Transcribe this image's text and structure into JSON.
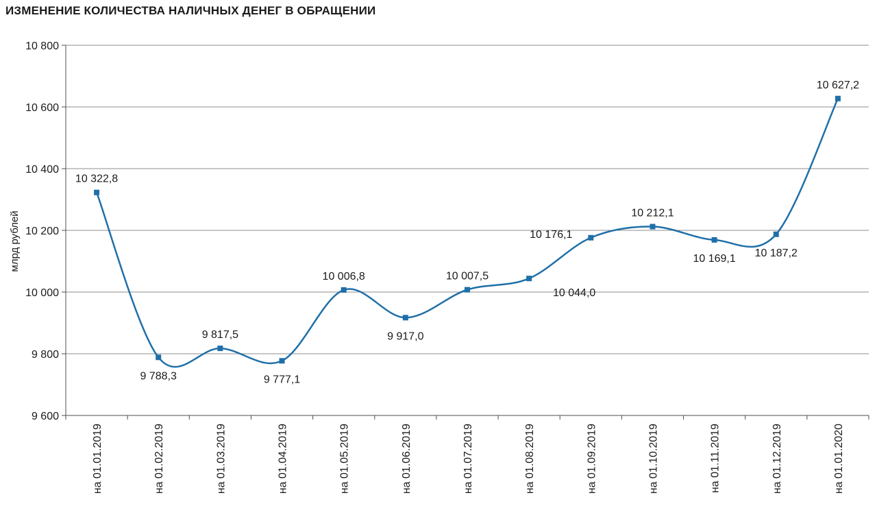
{
  "chart_data": {
    "type": "line",
    "title": "ИЗМЕНЕНИЕ КОЛИЧЕСТВА НАЛИЧНЫХ ДЕНЕГ В ОБРАЩЕНИИ",
    "xlabel": "",
    "ylabel": "млрд рублей",
    "ylim": [
      9600,
      10800
    ],
    "yticks": [
      9600,
      9800,
      10000,
      10200,
      10400,
      10600,
      10800
    ],
    "ytick_labels": [
      "9 600",
      "9 800",
      "10 000",
      "10 200",
      "10 400",
      "10 600",
      "10 800"
    ],
    "grid": true,
    "legend": "none",
    "categories": [
      "на 01.01.2019",
      "на 01.02.2019",
      "на 01.03.2019",
      "на 01.04.2019",
      "на 01.05.2019",
      "на 01.06.2019",
      "на 01.07.2019",
      "на 01.08.2019",
      "на 01.09.2019",
      "на 01.10.2019",
      "на 01.11.2019",
      "на 01.12.2019",
      "на 01.01.2020"
    ],
    "values": [
      10322.8,
      9788.3,
      9817.5,
      9777.1,
      10006.8,
      9917.0,
      10007.5,
      10044.0,
      10176.1,
      10212.1,
      10169.1,
      10187.2,
      10627.2
    ],
    "data_labels": [
      "10 322,8",
      "9 788,3",
      "9 817,5",
      "9 777,1",
      "10 006,8",
      "9 917,0",
      "10 007,5",
      "10 044,0",
      "10 176,1",
      "10 212,1",
      "10 169,1",
      "10 187,2",
      "10 627,2"
    ],
    "label_positions": [
      "above",
      "below",
      "above",
      "below",
      "above",
      "below",
      "above",
      "below-right",
      "above-left",
      "above",
      "below",
      "below",
      "above"
    ],
    "colors": {
      "line": "#1f6fa8",
      "marker": "#1f6fa8",
      "grid": "#8c8c8c",
      "axis": "#4d4d4d",
      "text": "#1a1a1a"
    }
  }
}
